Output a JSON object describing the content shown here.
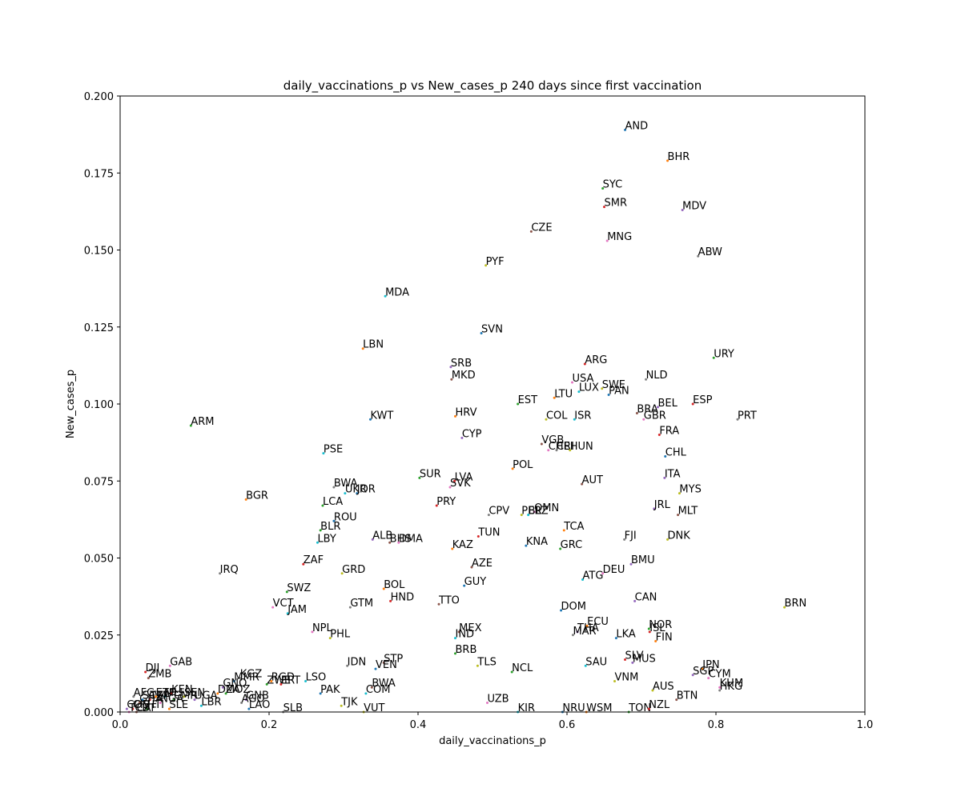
{
  "chart_data": {
    "type": "scatter",
    "title": "daily_vaccinations_p vs New_cases_p 240 days since first vaccination",
    "xlabel": "daily_vaccinations_p",
    "ylabel": "New_cases_p",
    "xlim": [
      0.0,
      1.0
    ],
    "ylim": [
      0.0,
      0.2
    ],
    "xticks": [
      "0.0",
      "0.2",
      "0.4",
      "0.6",
      "0.8",
      "1.0"
    ],
    "yticks": [
      "0.000",
      "0.025",
      "0.050",
      "0.075",
      "0.100",
      "0.125",
      "0.150",
      "0.175",
      "0.200"
    ],
    "grid": false,
    "points": [
      {
        "label": "AND",
        "x": 0.678,
        "y": 0.189
      },
      {
        "label": "BHR",
        "x": 0.735,
        "y": 0.179
      },
      {
        "label": "SYC",
        "x": 0.648,
        "y": 0.17
      },
      {
        "label": "SMR",
        "x": 0.65,
        "y": 0.164
      },
      {
        "label": "MDV",
        "x": 0.755,
        "y": 0.163
      },
      {
        "label": "CZE",
        "x": 0.552,
        "y": 0.156
      },
      {
        "label": "MNG",
        "x": 0.654,
        "y": 0.153
      },
      {
        "label": "ABW",
        "x": 0.776,
        "y": 0.148
      },
      {
        "label": "PYF",
        "x": 0.491,
        "y": 0.145
      },
      {
        "label": "MDA",
        "x": 0.356,
        "y": 0.135
      },
      {
        "label": "SVN",
        "x": 0.485,
        "y": 0.123
      },
      {
        "label": "LBN",
        "x": 0.326,
        "y": 0.118
      },
      {
        "label": "URY",
        "x": 0.797,
        "y": 0.115
      },
      {
        "label": "ARG",
        "x": 0.624,
        "y": 0.113
      },
      {
        "label": "SRB",
        "x": 0.444,
        "y": 0.112
      },
      {
        "label": "MKD",
        "x": 0.445,
        "y": 0.108
      },
      {
        "label": "USA",
        "x": 0.607,
        "y": 0.107
      },
      {
        "label": "NLD",
        "x": 0.706,
        "y": 0.108
      },
      {
        "label": "SWE",
        "x": 0.647,
        "y": 0.105
      },
      {
        "label": "LUX",
        "x": 0.616,
        "y": 0.104
      },
      {
        "label": "PAN",
        "x": 0.656,
        "y": 0.103
      },
      {
        "label": "LTU",
        "x": 0.583,
        "y": 0.102
      },
      {
        "label": "EST",
        "x": 0.534,
        "y": 0.1
      },
      {
        "label": "ESP",
        "x": 0.769,
        "y": 0.1
      },
      {
        "label": "BEL",
        "x": 0.722,
        "y": 0.099
      },
      {
        "label": "BRA",
        "x": 0.694,
        "y": 0.097
      },
      {
        "label": "GBR",
        "x": 0.703,
        "y": 0.095
      },
      {
        "label": "PRT",
        "x": 0.829,
        "y": 0.095
      },
      {
        "label": "COL",
        "x": 0.572,
        "y": 0.095
      },
      {
        "label": "ISR",
        "x": 0.61,
        "y": 0.095
      },
      {
        "label": "KWT",
        "x": 0.336,
        "y": 0.095
      },
      {
        "label": "HRV",
        "x": 0.45,
        "y": 0.096
      },
      {
        "label": "ARM",
        "x": 0.095,
        "y": 0.093
      },
      {
        "label": "FRA",
        "x": 0.724,
        "y": 0.09
      },
      {
        "label": "CYP",
        "x": 0.459,
        "y": 0.089
      },
      {
        "label": "VGB",
        "x": 0.566,
        "y": 0.087
      },
      {
        "label": "CHE",
        "x": 0.575,
        "y": 0.085
      },
      {
        "label": "CRI",
        "x": 0.586,
        "y": 0.085
      },
      {
        "label": "HUN",
        "x": 0.604,
        "y": 0.085
      },
      {
        "label": "PSE",
        "x": 0.273,
        "y": 0.084
      },
      {
        "label": "CHL",
        "x": 0.732,
        "y": 0.083
      },
      {
        "label": "POL",
        "x": 0.527,
        "y": 0.079
      },
      {
        "label": "SUR",
        "x": 0.402,
        "y": 0.076
      },
      {
        "label": "LVA",
        "x": 0.449,
        "y": 0.075
      },
      {
        "label": "ITA",
        "x": 0.731,
        "y": 0.076
      },
      {
        "label": "AUT",
        "x": 0.62,
        "y": 0.074
      },
      {
        "label": "SVK",
        "x": 0.443,
        "y": 0.073
      },
      {
        "label": "BWA",
        "x": 0.287,
        "y": 0.073
      },
      {
        "label": "MYS",
        "x": 0.751,
        "y": 0.071
      },
      {
        "label": "UKR",
        "x": 0.302,
        "y": 0.071
      },
      {
        "label": "JOR",
        "x": 0.318,
        "y": 0.071
      },
      {
        "label": "BGR",
        "x": 0.169,
        "y": 0.069
      },
      {
        "label": "LCA",
        "x": 0.272,
        "y": 0.067
      },
      {
        "label": "PRY",
        "x": 0.425,
        "y": 0.067
      },
      {
        "label": "JRL",
        "x": 0.717,
        "y": 0.066
      },
      {
        "label": "MLT",
        "x": 0.749,
        "y": 0.064
      },
      {
        "label": "OMN",
        "x": 0.556,
        "y": 0.065
      },
      {
        "label": "CPV",
        "x": 0.495,
        "y": 0.064
      },
      {
        "label": "PER",
        "x": 0.539,
        "y": 0.064
      },
      {
        "label": "BLZ",
        "x": 0.548,
        "y": 0.064
      },
      {
        "label": "ROU",
        "x": 0.287,
        "y": 0.062
      },
      {
        "label": "TCA",
        "x": 0.596,
        "y": 0.059
      },
      {
        "label": "BLR",
        "x": 0.269,
        "y": 0.059
      },
      {
        "label": "TUN",
        "x": 0.481,
        "y": 0.057
      },
      {
        "label": "ALB",
        "x": 0.339,
        "y": 0.056
      },
      {
        "label": "BHS",
        "x": 0.362,
        "y": 0.055
      },
      {
        "label": "DMA",
        "x": 0.374,
        "y": 0.055
      },
      {
        "label": "FJI",
        "x": 0.677,
        "y": 0.056
      },
      {
        "label": "DNK",
        "x": 0.735,
        "y": 0.056
      },
      {
        "label": "LBY",
        "x": 0.265,
        "y": 0.055
      },
      {
        "label": "KNA",
        "x": 0.545,
        "y": 0.054
      },
      {
        "label": "KAZ",
        "x": 0.446,
        "y": 0.053
      },
      {
        "label": "GRC",
        "x": 0.591,
        "y": 0.053
      },
      {
        "label": "ZAF",
        "x": 0.246,
        "y": 0.048
      },
      {
        "label": "BMU",
        "x": 0.686,
        "y": 0.048
      },
      {
        "label": "AZE",
        "x": 0.472,
        "y": 0.047
      },
      {
        "label": "DEU",
        "x": 0.648,
        "y": 0.045
      },
      {
        "label": "IRQ",
        "x": 0.134,
        "y": 0.045
      },
      {
        "label": "GRD",
        "x": 0.298,
        "y": 0.045
      },
      {
        "label": "ATG",
        "x": 0.621,
        "y": 0.043
      },
      {
        "label": "GUY",
        "x": 0.462,
        "y": 0.041
      },
      {
        "label": "BOL",
        "x": 0.354,
        "y": 0.04
      },
      {
        "label": "SWZ",
        "x": 0.224,
        "y": 0.039
      },
      {
        "label": "HND",
        "x": 0.363,
        "y": 0.036
      },
      {
        "label": "CAN",
        "x": 0.691,
        "y": 0.036
      },
      {
        "label": "TTO",
        "x": 0.428,
        "y": 0.035
      },
      {
        "label": "VCT",
        "x": 0.205,
        "y": 0.034
      },
      {
        "label": "GTM",
        "x": 0.309,
        "y": 0.034
      },
      {
        "label": "BRN",
        "x": 0.892,
        "y": 0.034
      },
      {
        "label": "JAM",
        "x": 0.225,
        "y": 0.032
      },
      {
        "label": "DOM",
        "x": 0.592,
        "y": 0.033
      },
      {
        "label": "ECU",
        "x": 0.627,
        "y": 0.028
      },
      {
        "label": "NOR",
        "x": 0.71,
        "y": 0.027
      },
      {
        "label": "ISL",
        "x": 0.711,
        "y": 0.026
      },
      {
        "label": "THA",
        "x": 0.614,
        "y": 0.026
      },
      {
        "label": "MEX",
        "x": 0.455,
        "y": 0.026
      },
      {
        "label": "NPL",
        "x": 0.258,
        "y": 0.026
      },
      {
        "label": "MAR",
        "x": 0.608,
        "y": 0.025
      },
      {
        "label": "PHL",
        "x": 0.282,
        "y": 0.024
      },
      {
        "label": "IND",
        "x": 0.45,
        "y": 0.024
      },
      {
        "label": "LKA",
        "x": 0.666,
        "y": 0.024
      },
      {
        "label": "FIN",
        "x": 0.719,
        "y": 0.023
      },
      {
        "label": "BRB",
        "x": 0.45,
        "y": 0.019
      },
      {
        "label": "SLV",
        "x": 0.678,
        "y": 0.017
      },
      {
        "label": "MUS",
        "x": 0.688,
        "y": 0.016
      },
      {
        "label": "STP",
        "x": 0.354,
        "y": 0.016
      },
      {
        "label": "GAB",
        "x": 0.067,
        "y": 0.015
      },
      {
        "label": "IDN",
        "x": 0.305,
        "y": 0.015
      },
      {
        "label": "TLS",
        "x": 0.48,
        "y": 0.015
      },
      {
        "label": "SAU",
        "x": 0.625,
        "y": 0.015
      },
      {
        "label": "VEN",
        "x": 0.343,
        "y": 0.014
      },
      {
        "label": "JPN",
        "x": 0.782,
        "y": 0.014
      },
      {
        "label": "NCL",
        "x": 0.526,
        "y": 0.013
      },
      {
        "label": "DJI",
        "x": 0.034,
        "y": 0.013
      },
      {
        "label": "SGP",
        "x": 0.769,
        "y": 0.012
      },
      {
        "label": "ZMB",
        "x": 0.038,
        "y": 0.011
      },
      {
        "label": "CYM",
        "x": 0.79,
        "y": 0.011
      },
      {
        "label": "KGZ",
        "x": 0.161,
        "y": 0.011
      },
      {
        "label": "VNM",
        "x": 0.664,
        "y": 0.01
      },
      {
        "label": "LSO",
        "x": 0.249,
        "y": 0.01
      },
      {
        "label": "MMR",
        "x": 0.153,
        "y": 0.01
      },
      {
        "label": "RGD",
        "x": 0.203,
        "y": 0.01
      },
      {
        "label": "ZWE",
        "x": 0.197,
        "y": 0.009
      },
      {
        "label": "ERT",
        "x": 0.216,
        "y": 0.009
      },
      {
        "label": "GNQ",
        "x": 0.138,
        "y": 0.008
      },
      {
        "label": "BWA",
        "x": 0.338,
        "y": 0.008
      },
      {
        "label": "KHM",
        "x": 0.805,
        "y": 0.008
      },
      {
        "label": "HKG",
        "x": 0.805,
        "y": 0.007
      },
      {
        "label": "AUS",
        "x": 0.715,
        "y": 0.007
      },
      {
        "label": "COM",
        "x": 0.33,
        "y": 0.006
      },
      {
        "label": "PAK",
        "x": 0.269,
        "y": 0.006
      },
      {
        "label": "DZA",
        "x": 0.131,
        "y": 0.006
      },
      {
        "label": "MOZ",
        "x": 0.142,
        "y": 0.006
      },
      {
        "label": "KEN",
        "x": 0.069,
        "y": 0.006
      },
      {
        "label": "GNB",
        "x": 0.169,
        "y": 0.004
      },
      {
        "label": "BTN",
        "x": 0.747,
        "y": 0.004
      },
      {
        "label": "UZB",
        "x": 0.493,
        "y": 0.003
      },
      {
        "label": "AFG",
        "x": 0.018,
        "y": 0.005
      },
      {
        "label": "SEN",
        "x": 0.086,
        "y": 0.005
      },
      {
        "label": "MLI",
        "x": 0.06,
        "y": 0.005
      },
      {
        "label": "SOM",
        "x": 0.03,
        "y": 0.004
      },
      {
        "label": "ETH",
        "x": 0.048,
        "y": 0.005
      },
      {
        "label": "CMR",
        "x": 0.072,
        "y": 0.004
      },
      {
        "label": "TZA",
        "x": 0.04,
        "y": 0.004
      },
      {
        "label": "UGA",
        "x": 0.1,
        "y": 0.004
      },
      {
        "label": "GHA",
        "x": 0.026,
        "y": 0.003
      },
      {
        "label": "NGA",
        "x": 0.054,
        "y": 0.003
      },
      {
        "label": "AGO",
        "x": 0.163,
        "y": 0.003
      },
      {
        "label": "TJK",
        "x": 0.297,
        "y": 0.002
      },
      {
        "label": "LBR",
        "x": 0.109,
        "y": 0.002
      },
      {
        "label": "LAO",
        "x": 0.173,
        "y": 0.001
      },
      {
        "label": "SLE",
        "x": 0.066,
        "y": 0.001
      },
      {
        "label": "HTI",
        "x": 0.036,
        "y": 0.001
      },
      {
        "label": "CIV",
        "x": 0.017,
        "y": 0.001
      },
      {
        "label": "COD",
        "x": 0.009,
        "y": 0.001
      },
      {
        "label": "CAF",
        "x": 0.022,
        "y": 0.0
      },
      {
        "label": "TCD",
        "x": 0.012,
        "y": 0.0
      },
      {
        "label": "SLB",
        "x": 0.219,
        "y": 0.0
      },
      {
        "label": "VUT",
        "x": 0.327,
        "y": 0.0
      },
      {
        "label": "KIR",
        "x": 0.534,
        "y": 0.0
      },
      {
        "label": "NRU",
        "x": 0.594,
        "y": 0.0
      },
      {
        "label": "WSM",
        "x": 0.626,
        "y": 0.0
      },
      {
        "label": "TON",
        "x": 0.683,
        "y": 0.0
      },
      {
        "label": "NZL",
        "x": 0.71,
        "y": 0.001
      }
    ]
  }
}
